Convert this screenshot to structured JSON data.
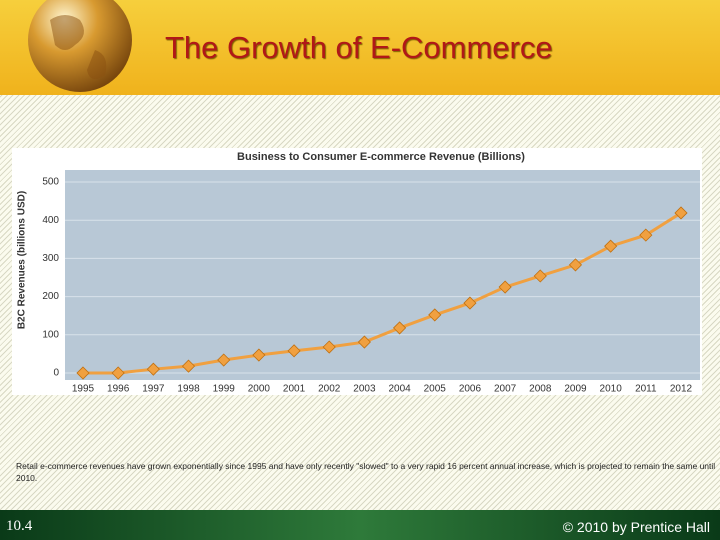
{
  "slide_title": "The Growth of E-Commerce",
  "chart_data": {
    "type": "line",
    "title": "Business to Consumer E-commerce Revenue (Billions)",
    "y_label": "B2C Revenues (billions USD)",
    "categories": [
      "1995",
      "1996",
      "1997",
      "1998",
      "1999",
      "2000",
      "2001",
      "2002",
      "2003",
      "2004",
      "2005",
      "2006",
      "2007",
      "2008",
      "2009",
      "2010",
      "2011",
      "2012"
    ],
    "series": [
      {
        "name": "B2C Revenues",
        "color": "#f0a040",
        "values": [
          0,
          0,
          10,
          18,
          34,
          47,
          58,
          68,
          81,
          118,
          152,
          183,
          225,
          254,
          283,
          332,
          361,
          419
        ]
      }
    ],
    "ylim": [
      0,
      500
    ],
    "yticks": [
      0,
      100,
      200,
      300,
      400,
      500
    ],
    "grid": true
  },
  "caption": "Retail e-commerce revenues have grown exponentially since 1995 and have only recently \"slowed\" to a very rapid 16 percent annual increase, which is projected to remain the same until 2010.",
  "footer": {
    "left": "10.4",
    "right": "© 2010 by Prentice Hall"
  }
}
